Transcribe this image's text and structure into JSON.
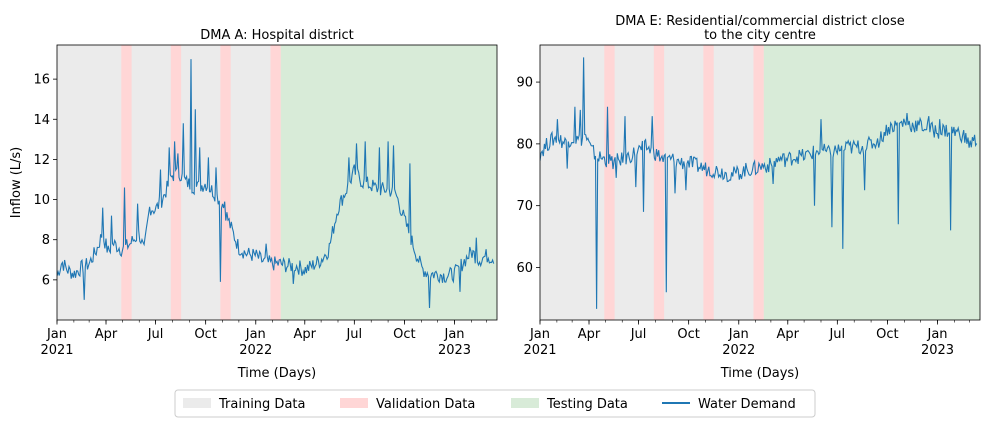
{
  "chart_data": [
    {
      "type": "line",
      "title": "DMA A: Hospital district",
      "xlabel": "Time (Days)",
      "ylabel": "Inflow (L/s)",
      "xlim": [
        "2021-01-01",
        "2023-03-20"
      ],
      "ylim": [
        4.0,
        17.7
      ],
      "yticks": [
        6,
        8,
        10,
        12,
        14,
        16
      ],
      "xticks": [
        {
          "date": "2021-01-01",
          "label": "Jan",
          "year": "2021"
        },
        {
          "date": "2021-04-01",
          "label": "Apr",
          "year": ""
        },
        {
          "date": "2021-07-01",
          "label": "Jul",
          "year": ""
        },
        {
          "date": "2021-10-01",
          "label": "Oct",
          "year": ""
        },
        {
          "date": "2022-01-01",
          "label": "Jan",
          "year": "2022"
        },
        {
          "date": "2022-04-01",
          "label": "Apr",
          "year": ""
        },
        {
          "date": "2022-07-01",
          "label": "Jul",
          "year": ""
        },
        {
          "date": "2022-10-01",
          "label": "Oct",
          "year": ""
        },
        {
          "date": "2023-01-01",
          "label": "Jan",
          "year": "2023"
        }
      ],
      "series": [
        {
          "name": "Water Demand",
          "color": "#1f77b4",
          "points": [
            [
              "2021-01-01",
              6.2
            ],
            [
              "2021-01-10",
              6.9
            ],
            [
              "2021-01-20",
              6.5
            ],
            [
              "2021-02-01",
              6.3
            ],
            [
              "2021-02-15",
              6.6
            ],
            [
              "2021-03-01",
              6.8
            ],
            [
              "2021-03-15",
              7.5
            ],
            [
              "2021-03-25",
              8.3
            ],
            [
              "2021-04-05",
              7.4
            ],
            [
              "2021-04-15",
              7.8
            ],
            [
              "2021-05-01",
              7.5
            ],
            [
              "2021-05-15",
              7.8
            ],
            [
              "2021-06-01",
              8.3
            ],
            [
              "2021-06-10",
              7.4
            ],
            [
              "2021-06-20",
              9.6
            ],
            [
              "2021-07-01",
              9.5
            ],
            [
              "2021-07-15",
              10.1
            ],
            [
              "2021-08-01",
              11.2
            ],
            [
              "2021-08-15",
              11.3
            ],
            [
              "2021-08-25",
              10.9
            ],
            [
              "2021-09-05",
              10.7
            ],
            [
              "2021-09-15",
              10.6
            ],
            [
              "2021-10-01",
              10.8
            ],
            [
              "2021-10-15",
              10.4
            ],
            [
              "2021-11-01",
              9.8
            ],
            [
              "2021-11-15",
              8.7
            ],
            [
              "2021-12-01",
              7.6
            ],
            [
              "2021-12-15",
              7.3
            ],
            [
              "2022-01-01",
              7.2
            ],
            [
              "2022-01-15",
              6.9
            ],
            [
              "2022-02-01",
              6.8
            ],
            [
              "2022-02-15",
              6.8
            ],
            [
              "2022-03-01",
              6.7
            ],
            [
              "2022-03-15",
              6.7
            ],
            [
              "2022-04-01",
              6.5
            ],
            [
              "2022-04-15",
              6.7
            ],
            [
              "2022-05-01",
              7.0
            ],
            [
              "2022-05-15",
              7.5
            ],
            [
              "2022-06-01",
              9.6
            ],
            [
              "2022-06-15",
              10.4
            ],
            [
              "2022-07-01",
              11.4
            ],
            [
              "2022-07-15",
              10.9
            ],
            [
              "2022-08-01",
              10.7
            ],
            [
              "2022-08-15",
              10.5
            ],
            [
              "2022-09-01",
              10.5
            ],
            [
              "2022-09-15",
              10.3
            ],
            [
              "2022-10-01",
              9.0
            ],
            [
              "2022-10-15",
              7.9
            ],
            [
              "2022-11-01",
              6.6
            ],
            [
              "2022-11-15",
              6.3
            ],
            [
              "2022-12-01",
              6.3
            ],
            [
              "2022-12-15",
              6.2
            ],
            [
              "2023-01-01",
              6.3
            ],
            [
              "2023-01-15",
              6.8
            ],
            [
              "2023-02-01",
              7.4
            ],
            [
              "2023-02-15",
              7.0
            ],
            [
              "2023-03-01",
              7.2
            ],
            [
              "2023-03-15",
              7.1
            ]
          ]
        }
      ],
      "spikes": [
        [
          "2021-02-20",
          5.0
        ],
        [
          "2021-03-25",
          9.6
        ],
        [
          "2021-04-10",
          9.2
        ],
        [
          "2021-05-05",
          10.6
        ],
        [
          "2021-05-28",
          9.8
        ],
        [
          "2021-07-10",
          11.5
        ],
        [
          "2021-07-25",
          12.6
        ],
        [
          "2021-08-05",
          12.9
        ],
        [
          "2021-08-10",
          12.3
        ],
        [
          "2021-08-20",
          13.8
        ],
        [
          "2021-09-03",
          17.0
        ],
        [
          "2021-09-12",
          14.5
        ],
        [
          "2021-09-20",
          12.6
        ],
        [
          "2021-10-05",
          12.1
        ],
        [
          "2021-10-20",
          11.6
        ],
        [
          "2021-10-28",
          5.9
        ],
        [
          "2021-11-05",
          9.9
        ],
        [
          "2022-01-20",
          7.8
        ],
        [
          "2022-03-10",
          5.8
        ],
        [
          "2022-06-20",
          12.1
        ],
        [
          "2022-07-05",
          12.8
        ],
        [
          "2022-07-20",
          12.9
        ],
        [
          "2022-08-15",
          12.6
        ],
        [
          "2022-09-01",
          12.9
        ],
        [
          "2022-09-10",
          12.7
        ],
        [
          "2022-10-10",
          11.8
        ],
        [
          "2022-11-15",
          4.6
        ],
        [
          "2023-01-10",
          5.4
        ],
        [
          "2023-02-10",
          8.1
        ]
      ],
      "regions": [
        {
          "label": "Training Data",
          "from": "2021-01-01",
          "to": "2022-03-20",
          "color": "#ebebeb"
        },
        {
          "label": "Validation Data",
          "from": "2021-04-29",
          "to": "2021-05-18",
          "color": "#ffd6d6"
        },
        {
          "label": "Validation Data",
          "from": "2021-07-29",
          "to": "2021-08-17",
          "color": "#ffd6d6"
        },
        {
          "label": "Validation Data",
          "from": "2021-10-28",
          "to": "2021-11-16",
          "color": "#ffd6d6"
        },
        {
          "label": "Validation Data",
          "from": "2022-01-28",
          "to": "2022-02-16",
          "color": "#ffd6d6"
        },
        {
          "label": "Testing Data",
          "from": "2022-02-16",
          "to": "2023-03-20",
          "color": "#d8ebd8"
        }
      ]
    },
    {
      "type": "line",
      "title": "DMA E: Residential/commercial district close\nto the city centre",
      "xlabel": "Time (Days)",
      "ylabel": "",
      "xlim": [
        "2021-01-01",
        "2023-03-20"
      ],
      "ylim": [
        51.5,
        96.0
      ],
      "yticks": [
        60,
        70,
        80,
        90
      ],
      "xticks": [
        {
          "date": "2021-01-01",
          "label": "Jan",
          "year": "2021"
        },
        {
          "date": "2021-04-01",
          "label": "Apr",
          "year": ""
        },
        {
          "date": "2021-07-01",
          "label": "Jul",
          "year": ""
        },
        {
          "date": "2021-10-01",
          "label": "Oct",
          "year": ""
        },
        {
          "date": "2022-01-01",
          "label": "Jan",
          "year": "2022"
        },
        {
          "date": "2022-04-01",
          "label": "Apr",
          "year": ""
        },
        {
          "date": "2022-07-01",
          "label": "Jul",
          "year": ""
        },
        {
          "date": "2022-10-01",
          "label": "Oct",
          "year": ""
        },
        {
          "date": "2023-01-01",
          "label": "Jan",
          "year": "2023"
        }
      ],
      "series": [
        {
          "name": "Water Demand",
          "color": "#1f77b4",
          "points": [
            [
              "2021-01-01",
              78.5
            ],
            [
              "2021-01-10",
              79.5
            ],
            [
              "2021-01-20",
              80.5
            ],
            [
              "2021-02-01",
              81.0
            ],
            [
              "2021-02-15",
              80.2
            ],
            [
              "2021-03-01",
              81.0
            ],
            [
              "2021-03-15",
              80.5
            ],
            [
              "2021-03-25",
              81.5
            ],
            [
              "2021-04-05",
              79.0
            ],
            [
              "2021-04-15",
              78.0
            ],
            [
              "2021-05-01",
              77.5
            ],
            [
              "2021-05-15",
              77.0
            ],
            [
              "2021-06-01",
              77.5
            ],
            [
              "2021-06-15",
              78.0
            ],
            [
              "2021-07-01",
              79.0
            ],
            [
              "2021-07-15",
              79.5
            ],
            [
              "2021-08-01",
              78.5
            ],
            [
              "2021-08-15",
              77.5
            ],
            [
              "2021-09-01",
              77.5
            ],
            [
              "2021-09-15",
              77.0
            ],
            [
              "2021-10-01",
              77.0
            ],
            [
              "2021-10-15",
              76.5
            ],
            [
              "2021-11-01",
              76.0
            ],
            [
              "2021-11-15",
              75.8
            ],
            [
              "2021-12-01",
              75.5
            ],
            [
              "2021-12-15",
              75.0
            ],
            [
              "2022-01-01",
              75.3
            ],
            [
              "2022-01-15",
              75.8
            ],
            [
              "2022-02-01",
              76.0
            ],
            [
              "2022-02-15",
              76.5
            ],
            [
              "2022-03-01",
              76.5
            ],
            [
              "2022-03-15",
              77.5
            ],
            [
              "2022-04-01",
              77.5
            ],
            [
              "2022-04-15",
              78.0
            ],
            [
              "2022-05-01",
              78.0
            ],
            [
              "2022-05-15",
              78.5
            ],
            [
              "2022-06-01",
              79.0
            ],
            [
              "2022-06-15",
              78.5
            ],
            [
              "2022-07-01",
              79.0
            ],
            [
              "2022-07-15",
              79.2
            ],
            [
              "2022-08-01",
              79.5
            ],
            [
              "2022-08-15",
              79.5
            ],
            [
              "2022-09-01",
              80.0
            ],
            [
              "2022-09-15",
              80.5
            ],
            [
              "2022-10-01",
              82.5
            ],
            [
              "2022-10-15",
              83.0
            ],
            [
              "2022-11-01",
              83.5
            ],
            [
              "2022-11-15",
              83.0
            ],
            [
              "2022-12-01",
              83.0
            ],
            [
              "2022-12-15",
              82.5
            ],
            [
              "2023-01-01",
              82.0
            ],
            [
              "2023-01-15",
              82.2
            ],
            [
              "2023-02-01",
              82.0
            ],
            [
              "2023-02-15",
              81.5
            ],
            [
              "2023-03-01",
              80.0
            ],
            [
              "2023-03-15",
              80.8
            ]
          ]
        }
      ],
      "spikes": [
        [
          "2021-02-01",
          84.0
        ],
        [
          "2021-02-20",
          76.0
        ],
        [
          "2021-03-05",
          86.0
        ],
        [
          "2021-03-15",
          85.5
        ],
        [
          "2021-03-22",
          94.0
        ],
        [
          "2021-04-15",
          53.3
        ],
        [
          "2021-05-05",
          86.0
        ],
        [
          "2021-05-20",
          74.5
        ],
        [
          "2021-06-05",
          84.5
        ],
        [
          "2021-06-25",
          73.0
        ],
        [
          "2021-07-10",
          69.0
        ],
        [
          "2021-07-25",
          84.5
        ],
        [
          "2021-08-20",
          56.0
        ],
        [
          "2021-09-05",
          72.0
        ],
        [
          "2021-09-25",
          72.5
        ],
        [
          "2022-03-05",
          73.5
        ],
        [
          "2022-05-20",
          70.0
        ],
        [
          "2022-06-01",
          84.0
        ],
        [
          "2022-06-20",
          66.5
        ],
        [
          "2022-07-10",
          63.0
        ],
        [
          "2022-07-20",
          80.5
        ],
        [
          "2022-08-20",
          72.5
        ],
        [
          "2022-09-10",
          80.0
        ],
        [
          "2022-10-20",
          67.0
        ],
        [
          "2022-11-05",
          85.0
        ],
        [
          "2022-12-15",
          84.5
        ],
        [
          "2023-01-05",
          84.0
        ],
        [
          "2023-01-25",
          66.0
        ]
      ],
      "regions": [
        {
          "label": "Training Data",
          "from": "2021-01-01",
          "to": "2022-03-20",
          "color": "#ebebeb"
        },
        {
          "label": "Validation Data",
          "from": "2021-04-29",
          "to": "2021-05-18",
          "color": "#ffd6d6"
        },
        {
          "label": "Validation Data",
          "from": "2021-07-29",
          "to": "2021-08-17",
          "color": "#ffd6d6"
        },
        {
          "label": "Validation Data",
          "from": "2021-10-28",
          "to": "2021-11-16",
          "color": "#ffd6d6"
        },
        {
          "label": "Validation Data",
          "from": "2022-01-28",
          "to": "2022-02-16",
          "color": "#ffd6d6"
        },
        {
          "label": "Testing Data",
          "from": "2022-02-16",
          "to": "2023-03-20",
          "color": "#d8ebd8"
        }
      ]
    }
  ],
  "legend": {
    "placement": "bottom-center",
    "items": [
      {
        "label": "Training Data",
        "color": "#ebebeb",
        "kind": "patch"
      },
      {
        "label": "Validation Data",
        "color": "#ffd6d6",
        "kind": "patch"
      },
      {
        "label": "Testing Data",
        "color": "#d8ebd8",
        "kind": "patch"
      },
      {
        "label": "Water Demand",
        "color": "#1f77b4",
        "kind": "line"
      }
    ]
  }
}
